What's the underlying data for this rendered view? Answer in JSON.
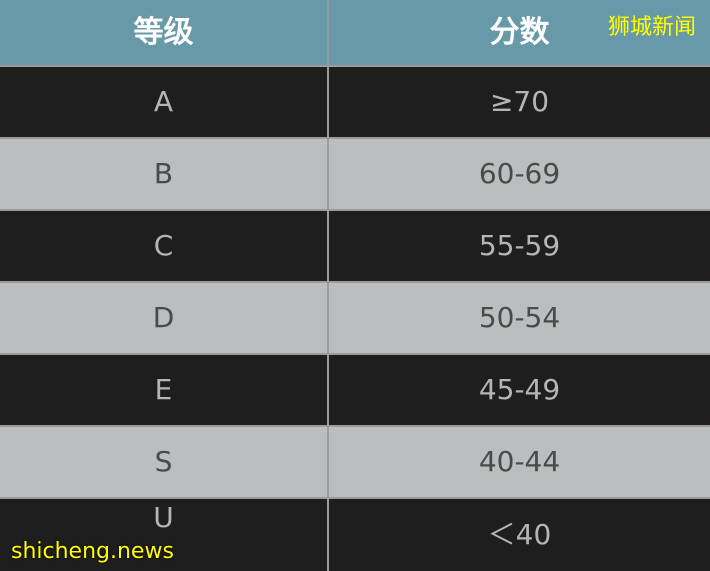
{
  "header": {
    "grade": "等级",
    "score": "分数"
  },
  "rows": [
    {
      "grade": "A",
      "score": "≥70",
      "shade": "dark"
    },
    {
      "grade": "B",
      "score": "60-69",
      "shade": "light"
    },
    {
      "grade": "C",
      "score": "55-59",
      "shade": "dark"
    },
    {
      "grade": "D",
      "score": "50-54",
      "shade": "light"
    },
    {
      "grade": "E",
      "score": "45-49",
      "shade": "dark"
    },
    {
      "grade": "S",
      "score": "40-44",
      "shade": "light"
    },
    {
      "grade": "U",
      "score": "＜40",
      "shade": "dark"
    }
  ],
  "watermarks": {
    "chinese": "狮城新闻",
    "latin": "shicheng.news"
  },
  "colors": {
    "header": "#6899a8",
    "dark_row": "#1e1e1e",
    "light_row": "#bbbebf",
    "watermark": "#ffff00"
  }
}
